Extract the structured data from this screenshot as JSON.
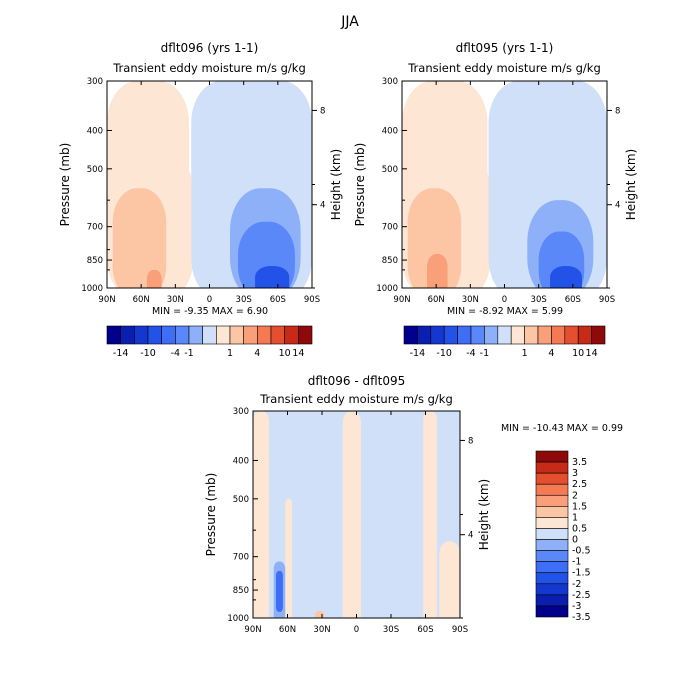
{
  "figure_title": "JJA",
  "chart_data": [
    {
      "type": "heatmap",
      "title": "dflt096 (yrs 1-1)",
      "subtitle": "Transient eddy moisture m/s g/kg",
      "xlabel": "",
      "ylabel": "Pressure (mb)",
      "y2label": "Height (km)",
      "x_ticks": [
        "90N",
        "60N",
        "30N",
        "0",
        "30S",
        "60S",
        "90S"
      ],
      "y_ticks": [
        "300",
        "400",
        "500",
        "700",
        "850",
        "1000"
      ],
      "y2_ticks": [
        "8",
        "4"
      ],
      "xlim": [
        90,
        -90
      ],
      "ylim": [
        1000,
        300
      ],
      "y_scale": "log",
      "stats_text": "MIN = -9.35   MAX =  6.90",
      "min": -9.35,
      "max": 6.9,
      "colorbar_labels": [
        "-14",
        "-10",
        "-4",
        "-1",
        "1",
        "4",
        "10",
        "14"
      ],
      "regions": [
        {
          "lat_range": [
            90,
            18
          ],
          "p_range": [
            1000,
            300
          ],
          "value": 0.5
        },
        {
          "lat_range": [
            88,
            14
          ],
          "p_range": [
            1000,
            450
          ],
          "value": 1.5
        },
        {
          "lat_range": [
            85,
            38
          ],
          "p_range": [
            1000,
            560
          ],
          "value": 3
        },
        {
          "lat_range": [
            55,
            42
          ],
          "p_range": [
            1000,
            900
          ],
          "value": 5
        },
        {
          "lat_range": [
            16,
            -90
          ],
          "p_range": [
            1000,
            300
          ],
          "value": -0.5
        },
        {
          "lat_range": [
            -10,
            -85
          ],
          "p_range": [
            1000,
            440
          ],
          "value": -1.5
        },
        {
          "lat_range": [
            -18,
            -80
          ],
          "p_range": [
            1000,
            560
          ],
          "value": -3
        },
        {
          "lat_range": [
            -25,
            -75
          ],
          "p_range": [
            1000,
            680
          ],
          "value": -5
        },
        {
          "lat_range": [
            -40,
            -70
          ],
          "p_range": [
            1000,
            880
          ],
          "value": -8
        }
      ]
    },
    {
      "type": "heatmap",
      "title": "dflt095 (yrs 1-1)",
      "subtitle": "Transient eddy moisture m/s g/kg",
      "xlabel": "",
      "ylabel": "Pressure (mb)",
      "y2label": "Height (km)",
      "x_ticks": [
        "90N",
        "60N",
        "30N",
        "0",
        "30S",
        "60S",
        "90S"
      ],
      "y_ticks": [
        "300",
        "400",
        "500",
        "700",
        "850",
        "1000"
      ],
      "y2_ticks": [
        "8",
        "4"
      ],
      "xlim": [
        90,
        -90
      ],
      "ylim": [
        1000,
        300
      ],
      "y_scale": "log",
      "stats_text": "MIN = -8.92   MAX =  5.99",
      "min": -8.92,
      "max": 5.99,
      "colorbar_labels": [
        "-14",
        "-10",
        "-4",
        "-1",
        "1",
        "4",
        "10",
        "14"
      ],
      "regions": [
        {
          "lat_range": [
            90,
            15
          ],
          "p_range": [
            1000,
            300
          ],
          "value": 0.5
        },
        {
          "lat_range": [
            88,
            12
          ],
          "p_range": [
            1000,
            450
          ],
          "value": 1.5
        },
        {
          "lat_range": [
            85,
            38
          ],
          "p_range": [
            1000,
            560
          ],
          "value": 3
        },
        {
          "lat_range": [
            68,
            50
          ],
          "p_range": [
            1000,
            820
          ],
          "value": 5
        },
        {
          "lat_range": [
            14,
            -90
          ],
          "p_range": [
            1000,
            300
          ],
          "value": -0.5
        },
        {
          "lat_range": [
            -5,
            -85
          ],
          "p_range": [
            1000,
            480
          ],
          "value": -1.5
        },
        {
          "lat_range": [
            -20,
            -78
          ],
          "p_range": [
            1000,
            600
          ],
          "value": -3
        },
        {
          "lat_range": [
            -30,
            -70
          ],
          "p_range": [
            1000,
            720
          ],
          "value": -5
        },
        {
          "lat_range": [
            -40,
            -68
          ],
          "p_range": [
            1000,
            880
          ],
          "value": -8
        }
      ]
    },
    {
      "type": "heatmap",
      "title": "dflt096 - dflt095",
      "subtitle": "Transient eddy moisture m/s g/kg",
      "xlabel": "",
      "ylabel": "Pressure (mb)",
      "y2label": "Height (km)",
      "x_ticks": [
        "90N",
        "60N",
        "30N",
        "0",
        "30S",
        "60S",
        "90S"
      ],
      "y_ticks": [
        "300",
        "400",
        "500",
        "700",
        "850",
        "1000"
      ],
      "y2_ticks": [
        "8",
        "4"
      ],
      "xlim": [
        90,
        -90
      ],
      "ylim": [
        1000,
        300
      ],
      "y_scale": "log",
      "stats_text": "MIN = -10.43   MAX =   0.99",
      "min": -10.43,
      "max": 0.99,
      "colorbar_labels": [
        "3.5",
        "3",
        "2.5",
        "2",
        "1.5",
        "1",
        "0.5",
        "0",
        "-0.5",
        "-1",
        "-1.5",
        "-2",
        "-2.5",
        "-3",
        "-3.5"
      ],
      "regions": [
        {
          "lat_range": [
            90,
            -90
          ],
          "p_range": [
            1000,
            300
          ],
          "value": -0.25
        },
        {
          "lat_range": [
            90,
            76
          ],
          "p_range": [
            1000,
            300
          ],
          "value": 0.25
        },
        {
          "lat_range": [
            62,
            56
          ],
          "p_range": [
            1000,
            500
          ],
          "value": 0.25
        },
        {
          "lat_range": [
            12,
            -4
          ],
          "p_range": [
            1000,
            300
          ],
          "value": 0.25
        },
        {
          "lat_range": [
            -58,
            -70
          ],
          "p_range": [
            1000,
            300
          ],
          "value": 0.25
        },
        {
          "lat_range": [
            -72,
            -90
          ],
          "p_range": [
            1000,
            640
          ],
          "value": 0.25
        },
        {
          "lat_range": [
            72,
            62
          ],
          "p_range": [
            960,
            720
          ],
          "value": -0.75
        },
        {
          "lat_range": [
            70,
            64
          ],
          "p_range": [
            900,
            760
          ],
          "value": -1.75
        },
        {
          "lat_range": [
            36,
            28
          ],
          "p_range": [
            1000,
            960
          ],
          "value": 0.75
        }
      ]
    }
  ],
  "colors": {
    "palette": [
      "#00008c",
      "#0a1fb0",
      "#1438cf",
      "#2352e8",
      "#3d6ef5",
      "#5a88f8",
      "#8eb0f8",
      "#cfe0f8",
      "#fde6d4",
      "#fcc6a4",
      "#f9a07a",
      "#f57a54",
      "#e4502f",
      "#c82a18",
      "#8e0a0a"
    ],
    "axis": "#000000"
  }
}
